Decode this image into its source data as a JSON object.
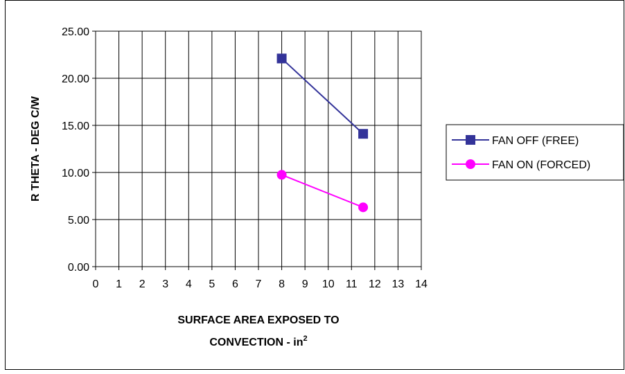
{
  "chart_data": {
    "type": "line",
    "title": "",
    "xlabel": "SURFACE AREA EXPOSED TO CONVECTION - in",
    "xlabel_line1": "SURFACE AREA EXPOSED TO",
    "xlabel_line2": "CONVECTION - in",
    "xlabel_superscript": "2",
    "ylabel": "R THETA - DEG C/W",
    "xlim": [
      0,
      14
    ],
    "ylim": [
      0,
      25
    ],
    "x_ticks": [
      "0",
      "1",
      "2",
      "3",
      "4",
      "5",
      "6",
      "7",
      "8",
      "9",
      "10",
      "11",
      "12",
      "13",
      "14"
    ],
    "y_ticks": [
      "0.00",
      "5.00",
      "10.00",
      "15.00",
      "20.00",
      "25.00"
    ],
    "grid": true,
    "legend_position": "right",
    "series": [
      {
        "name": "FAN OFF (FREE)",
        "color": "#333399",
        "marker": "square",
        "x": [
          8,
          11.5
        ],
        "y": [
          22.1,
          14.1
        ]
      },
      {
        "name": "FAN ON (FORCED)",
        "color": "#ff00ff",
        "marker": "circle",
        "x": [
          8,
          11.5
        ],
        "y": [
          9.75,
          6.3
        ]
      }
    ]
  }
}
